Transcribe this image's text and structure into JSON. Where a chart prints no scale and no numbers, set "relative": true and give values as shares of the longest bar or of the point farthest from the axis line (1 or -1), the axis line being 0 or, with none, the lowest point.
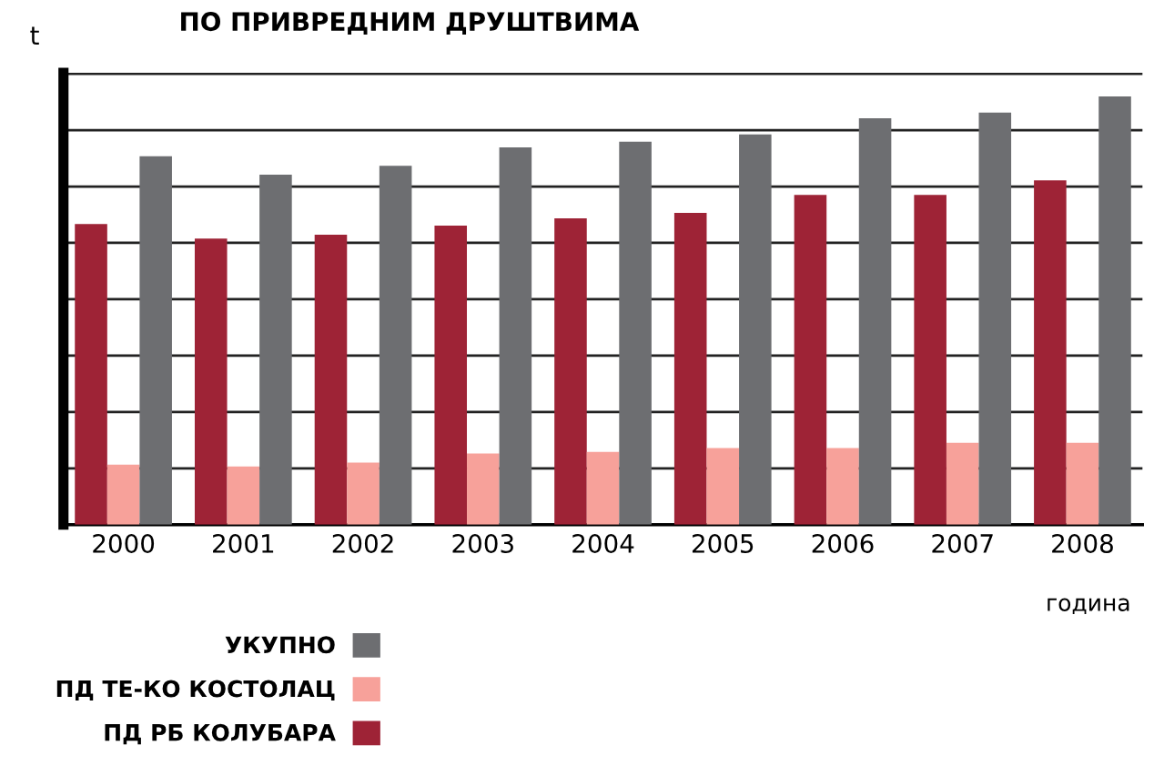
{
  "chart_data": {
    "type": "bar",
    "title": "ПО ПРИВРЕДНИМ ДРУШТВИМА",
    "ylabel": "t",
    "xlabel": "година",
    "relative": true,
    "grid": "y",
    "legend": "bottom left",
    "categories": [
      "2000",
      "2001",
      "2002",
      "2003",
      "2004",
      "2005",
      "2006",
      "2007",
      "2008"
    ],
    "series": [
      {
        "name": "ПД РБ КОЛУБАРА",
        "color": "#9e2336",
        "values": [
          0.702,
          0.668,
          0.677,
          0.698,
          0.715,
          0.728,
          0.77,
          0.77,
          0.804
        ]
      },
      {
        "name": "ПД ТЕ-КО КОСТОЛАЦ",
        "color": "#f7a19a",
        "values": [
          0.14,
          0.136,
          0.145,
          0.166,
          0.17,
          0.179,
          0.179,
          0.191,
          0.191
        ]
      },
      {
        "name": "УКУПНО",
        "color": "#6d6e71",
        "values": [
          0.86,
          0.817,
          0.838,
          0.881,
          0.894,
          0.911,
          0.949,
          0.962,
          1.0
        ]
      }
    ]
  }
}
